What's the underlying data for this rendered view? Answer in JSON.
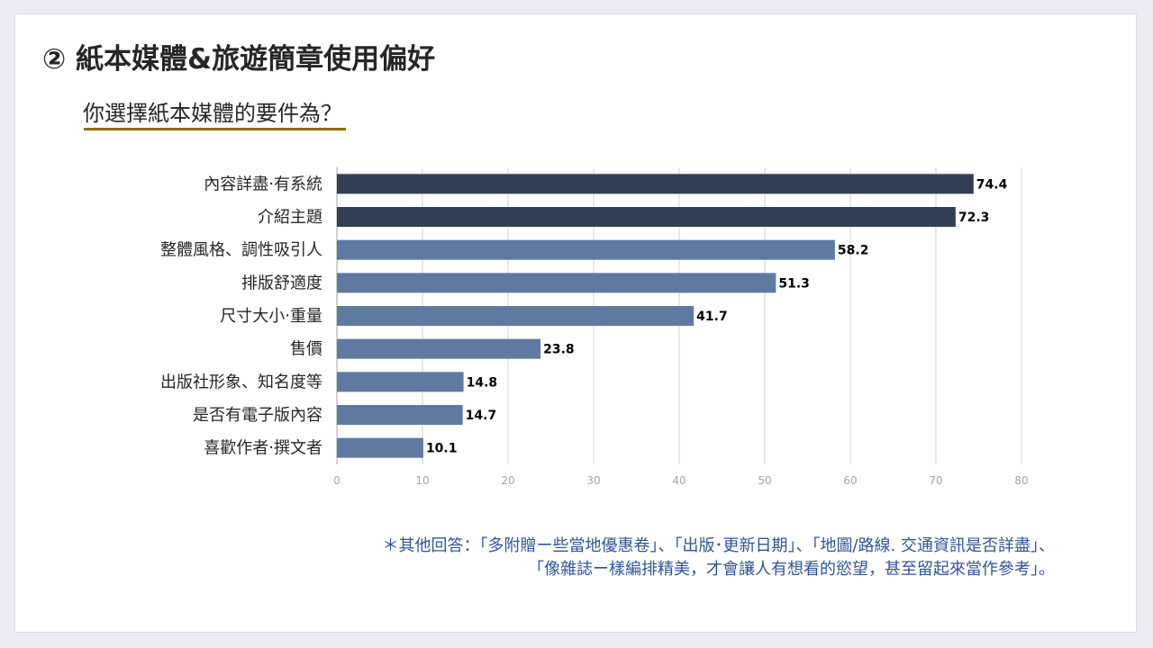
{
  "title": "② 紙本媒體&旅遊簡章使用偏好",
  "subtitle": "你選擇紙本媒體的要件為？",
  "note": {
    "line1": "＊其他回答：「多附贈ー些當地優惠卷」、「出版･更新日期」、「地圖/路線. 交通資訊是否詳盡」、",
    "line2": "「像雜誌ー樣編排精美，才會讓人有想看的慾望，甚至留起來當作參考」。"
  },
  "colors": {
    "highlight_bar": "#323e52",
    "normal_bar": "#5f7aa0",
    "accent_line": "#8a6d00",
    "note_text": "#2f5597",
    "grid": "#d0d0d0"
  },
  "chart_data": {
    "type": "bar",
    "orientation": "horizontal",
    "categories": [
      "內容詳盡‧有系統",
      "介紹主題",
      "整體風格、調性吸引人",
      "排版舒適度",
      "尺寸大小‧重量",
      "售價",
      "出版社形象、知名度等",
      "是否有電子版內容",
      "喜歡作者‧撰文者"
    ],
    "values": [
      74.4,
      72.3,
      58.2,
      51.3,
      41.7,
      23.8,
      14.8,
      14.7,
      10.1
    ],
    "highlighted": [
      true,
      true,
      false,
      false,
      false,
      false,
      false,
      false,
      false
    ],
    "xlim": [
      0,
      80
    ],
    "xticks": [
      0,
      10,
      20,
      30,
      40,
      50,
      60,
      70,
      80
    ],
    "grid": true
  }
}
